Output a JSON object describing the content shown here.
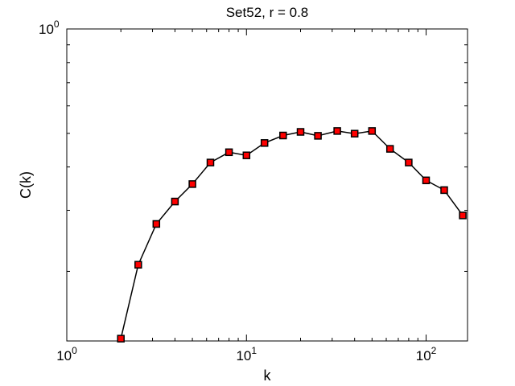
{
  "chart_data": {
    "type": "line",
    "title": "Set52, r = 0.8",
    "xlabel": "k",
    "ylabel": "C(k)",
    "xscale": "log",
    "yscale": "log",
    "xlim": [
      1,
      170
    ],
    "ylim": [
      0.126,
      1
    ],
    "grid": false,
    "legend": "none",
    "x_ticks": [
      {
        "value": 1,
        "base": "10",
        "exp": "0"
      },
      {
        "value": 10,
        "base": "10",
        "exp": "1"
      },
      {
        "value": 100,
        "base": "10",
        "exp": "2"
      }
    ],
    "y_ticks": [
      {
        "value": 1,
        "base": "10",
        "exp": "0"
      }
    ],
    "colors": {
      "line": "#000000",
      "marker_fill": "#ff0000",
      "marker_edge": "#000000"
    },
    "series": [
      {
        "x": [
          2.0,
          2.5,
          3.15,
          4.0,
          5.0,
          6.3,
          8.0,
          10.0,
          12.6,
          16.0,
          20.0,
          25.0,
          32.0,
          40.0,
          50.0,
          63.0,
          80.0,
          100.0,
          126.0,
          160.0
        ],
        "y": [
          0.128,
          0.209,
          0.274,
          0.318,
          0.357,
          0.412,
          0.441,
          0.432,
          0.469,
          0.493,
          0.505,
          0.492,
          0.508,
          0.499,
          0.508,
          0.451,
          0.412,
          0.366,
          0.343,
          0.29
        ]
      }
    ]
  }
}
